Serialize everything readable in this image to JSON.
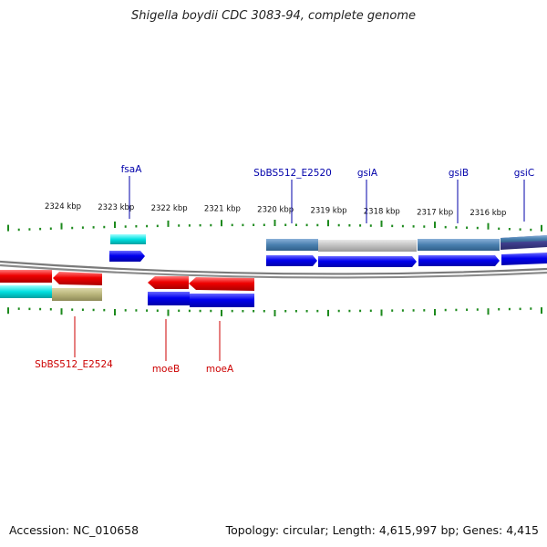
{
  "title": "Shigella boydii CDC 3083-94, complete genome",
  "footer": {
    "accession": "Accession: NC_010658",
    "summary": "Topology: circular; Length: 4,615,997 bp; Genes: 4,415"
  },
  "colors": {
    "tick": "#1d8a1d",
    "backbone": "#888888",
    "label_top": "#0000aa",
    "label_bottom": "#cc0000",
    "cds_forward": "#0000ee",
    "cds_reverse": "#ee0000",
    "cog_cyan": "#00e0e0",
    "cog_steel": "#4a80b0",
    "cog_grey": "#c0c0c0",
    "cog_navy": "#404090",
    "cog_olive": "#b8b47a"
  },
  "scale": {
    "unit": "kbp",
    "tick_labels": [
      "2324 kbp",
      "2323 kbp",
      "2322 kbp",
      "2321 kbp",
      "2320 kbp",
      "2319 kbp",
      "2318 kbp",
      "2317 kbp",
      "2316 kbp"
    ]
  },
  "genes_top": [
    {
      "name": "fsaA",
      "strand": "forward",
      "cog": "cyan"
    },
    {
      "name": "SbBS512_E2520",
      "strand": "forward",
      "cog": "steel"
    },
    {
      "name": "gsiA",
      "strand": "forward",
      "cog": "grey"
    },
    {
      "name": "gsiB",
      "strand": "forward",
      "cog": "steel"
    },
    {
      "name": "gsiC",
      "strand": "forward",
      "cog": "navy"
    }
  ],
  "genes_bottom": [
    {
      "name": "SbBS512_E2524",
      "strand": "reverse",
      "cog": "olive"
    },
    {
      "name": "moeB",
      "strand": "reverse",
      "cog": "forward-blue"
    },
    {
      "name": "moeA",
      "strand": "reverse",
      "cog": "forward-blue"
    }
  ]
}
